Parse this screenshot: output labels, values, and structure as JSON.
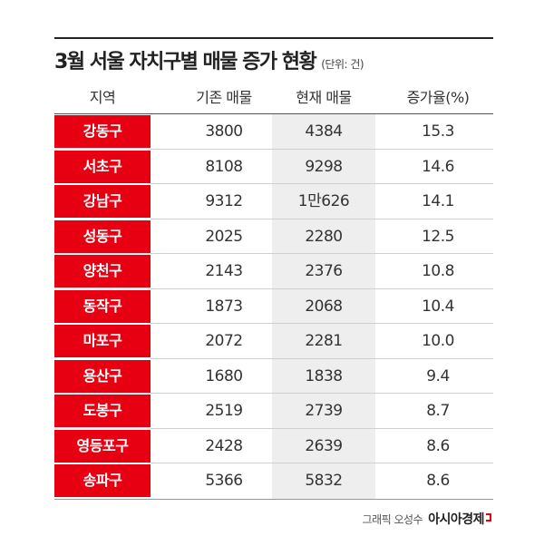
{
  "title": "3월 서울 자치구별 매물 증가 현황",
  "unit_note": "(단위: 건)",
  "credit": {
    "byline": "그래픽 오성수",
    "brand": "아시아경제"
  },
  "colors": {
    "district_bg": "#e60012",
    "highlight_col": "#eeeeee"
  },
  "chart_data": {
    "type": "table",
    "columns": [
      "지역",
      "기존 매물",
      "현재 매물",
      "증가율(%)"
    ],
    "rows": [
      {
        "district": "강동구",
        "previous": "3800",
        "current": "4384",
        "rate": "15.3"
      },
      {
        "district": "서초구",
        "previous": "8108",
        "current": "9298",
        "rate": "14.6"
      },
      {
        "district": "강남구",
        "previous": "9312",
        "current": "1만626",
        "rate": "14.1"
      },
      {
        "district": "성동구",
        "previous": "2025",
        "current": "2280",
        "rate": "12.5"
      },
      {
        "district": "양천구",
        "previous": "2143",
        "current": "2376",
        "rate": "10.8"
      },
      {
        "district": "동작구",
        "previous": "1873",
        "current": "2068",
        "rate": "10.4"
      },
      {
        "district": "마포구",
        "previous": "2072",
        "current": "2281",
        "rate": "10.0"
      },
      {
        "district": "용산구",
        "previous": "1680",
        "current": "1838",
        "rate": "9.4"
      },
      {
        "district": "도봉구",
        "previous": "2519",
        "current": "2739",
        "rate": "8.7"
      },
      {
        "district": "영등포구",
        "previous": "2428",
        "current": "2639",
        "rate": "8.6"
      },
      {
        "district": "송파구",
        "previous": "5366",
        "current": "5832",
        "rate": "8.6"
      }
    ]
  }
}
